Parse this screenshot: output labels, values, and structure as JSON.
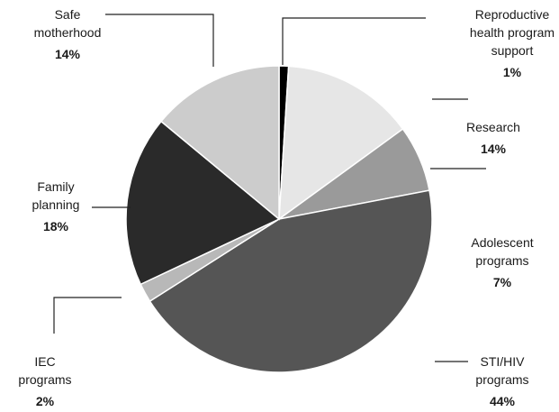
{
  "chart_data": {
    "type": "pie",
    "title": "",
    "start": "top, clockwise",
    "slices": [
      {
        "label_lines": [
          "Reproductive",
          "health program",
          "support"
        ],
        "value": 1,
        "value_label": "1%",
        "color": "#000000"
      },
      {
        "label_lines": [
          "Research"
        ],
        "value": 14,
        "value_label": "14%",
        "color": "#e6e6e6"
      },
      {
        "label_lines": [
          "Adolescent",
          "programs"
        ],
        "value": 7,
        "value_label": "7%",
        "color": "#9a9a9a"
      },
      {
        "label_lines": [
          "STI/HIV",
          "programs"
        ],
        "value": 44,
        "value_label": "44%",
        "color": "#555555"
      },
      {
        "label_lines": [
          "IEC",
          "programs"
        ],
        "value": 2,
        "value_label": "2%",
        "color": "#b8b8b8"
      },
      {
        "label_lines": [
          "Family",
          "planning"
        ],
        "value": 18,
        "value_label": "18%",
        "color": "#2a2a2a"
      },
      {
        "label_lines": [
          "Safe",
          "motherhood"
        ],
        "value": 14,
        "value_label": "14%",
        "color": "#cccccc"
      }
    ]
  }
}
